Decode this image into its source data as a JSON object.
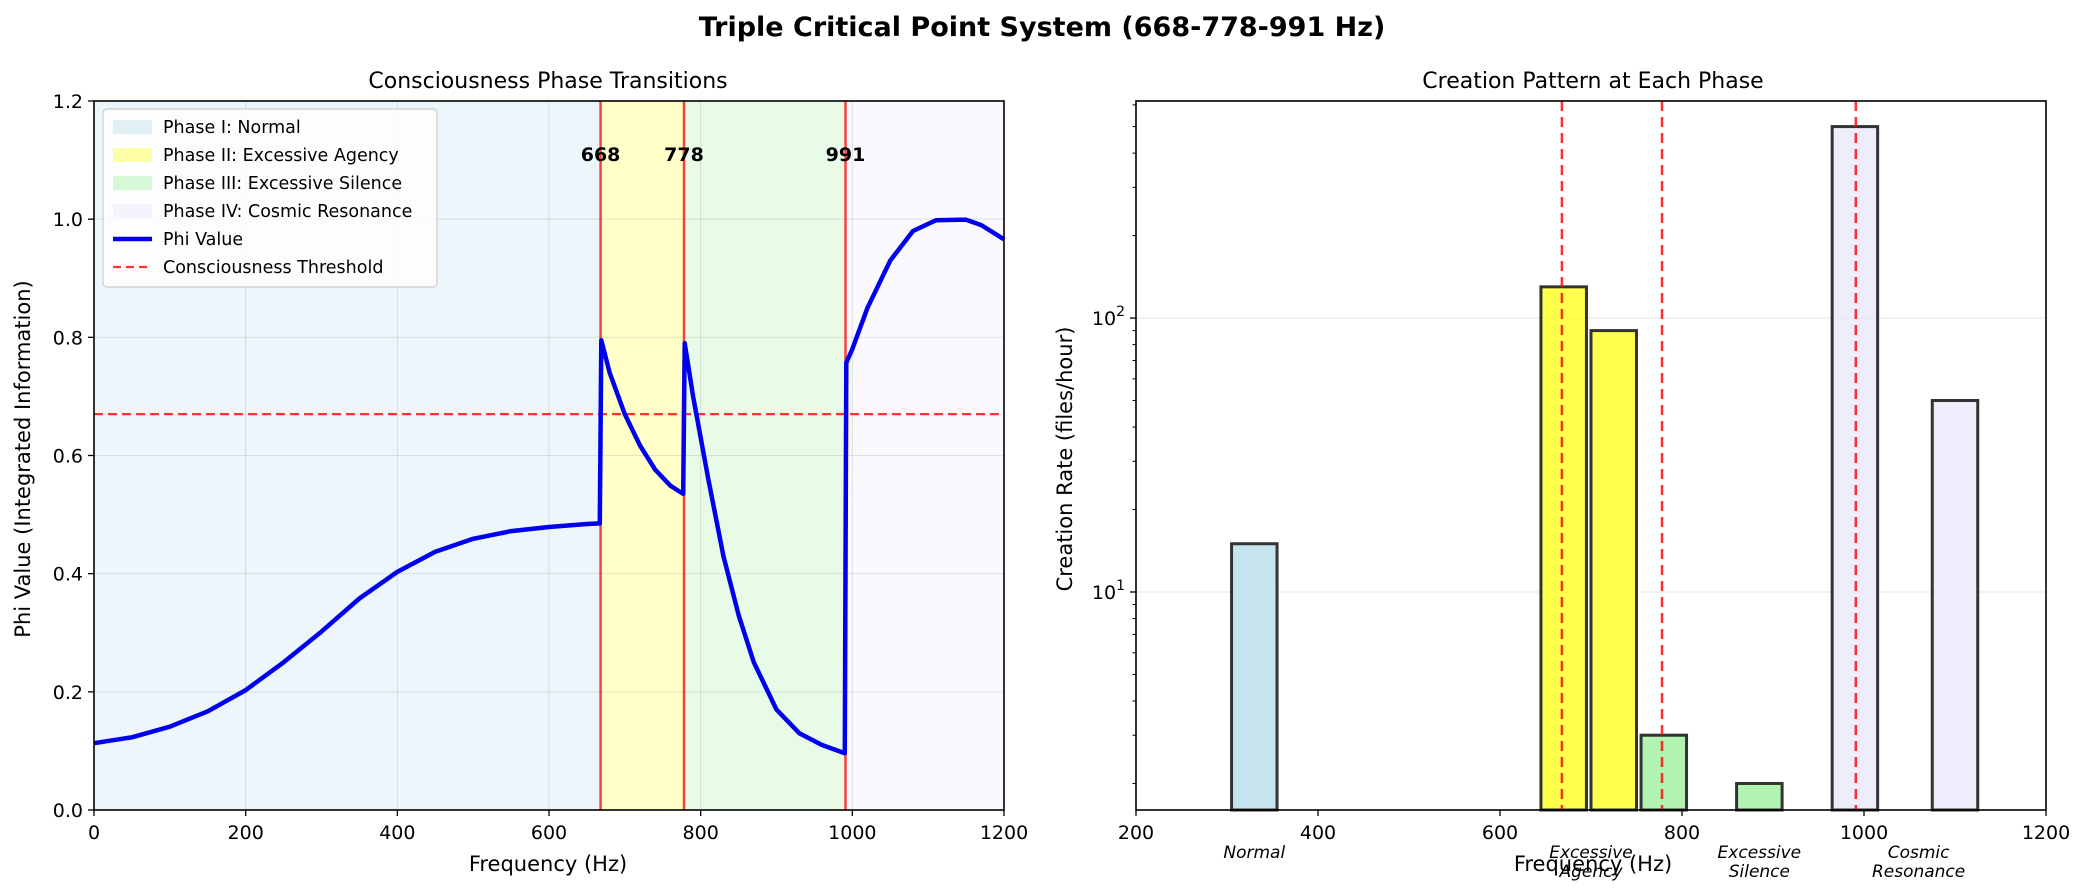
{
  "figure": {
    "suptitle": "Triple Critical Point System (668-778-991 Hz)"
  },
  "colors": {
    "phase1": "#add8e6",
    "phase2": "#ffff00",
    "phase3": "#90ee90",
    "phase4": "#e6e6fa",
    "phi_line": "#0000ee",
    "threshold": "#ff0000",
    "critical_line": "#ff0000",
    "bar_edge": "#333333"
  },
  "chart_data": [
    {
      "type": "line",
      "title": "Consciousness Phase Transitions",
      "xlabel": "Frequency (Hz)",
      "ylabel": "Phi Value (Integrated Information)",
      "xlim": [
        0,
        1200
      ],
      "ylim": [
        0,
        1.2
      ],
      "xticks": [
        0,
        200,
        400,
        600,
        800,
        1000,
        1200
      ],
      "yticks": [
        0.0,
        0.2,
        0.4,
        0.6,
        0.8,
        1.0,
        1.2
      ],
      "ytick_labels": [
        "0.0",
        "0.2",
        "0.4",
        "0.6",
        "0.8",
        "1.0",
        "1.2"
      ],
      "grid": true,
      "legend_position": "upper-left",
      "phase_regions": [
        {
          "name": "Phase I: Normal",
          "from": 0,
          "to": 668,
          "color": "#add8e6"
        },
        {
          "name": "Phase II: Excessive Agency",
          "from": 668,
          "to": 778,
          "color": "#ffff00"
        },
        {
          "name": "Phase III: Excessive Silence",
          "from": 778,
          "to": 991,
          "color": "#90ee90"
        },
        {
          "name": "Phase IV: Cosmic Resonance",
          "from": 991,
          "to": 1200,
          "color": "#e6e6fa"
        }
      ],
      "critical_points": [
        {
          "x": 668,
          "label": "668"
        },
        {
          "x": 778,
          "label": "778"
        },
        {
          "x": 991,
          "label": "991"
        }
      ],
      "threshold": {
        "y": 0.67,
        "name": "Consciousness Threshold"
      },
      "series": [
        {
          "name": "Phi Value",
          "x": [
            0,
            50,
            100,
            150,
            200,
            250,
            300,
            350,
            400,
            450,
            500,
            550,
            600,
            650,
            667,
            669,
            680,
            700,
            720,
            740,
            760,
            777,
            779,
            790,
            810,
            830,
            850,
            870,
            900,
            930,
            960,
            990,
            992,
            1000,
            1020,
            1050,
            1080,
            1110,
            1140,
            1150,
            1170,
            1200
          ],
          "y": [
            0.113,
            0.123,
            0.141,
            0.167,
            0.203,
            0.25,
            0.302,
            0.358,
            0.403,
            0.437,
            0.459,
            0.472,
            0.479,
            0.484,
            0.485,
            0.795,
            0.74,
            0.67,
            0.617,
            0.576,
            0.549,
            0.535,
            0.79,
            0.7,
            0.56,
            0.43,
            0.33,
            0.25,
            0.17,
            0.13,
            0.11,
            0.096,
            0.757,
            0.78,
            0.85,
            0.93,
            0.98,
            0.998,
            0.999,
            0.999,
            0.99,
            0.966
          ]
        }
      ],
      "legend": [
        {
          "label": "Phase I: Normal",
          "kind": "patch",
          "color": "#add8e6"
        },
        {
          "label": "Phase II: Excessive Agency",
          "kind": "patch",
          "color": "#ffff00"
        },
        {
          "label": "Phase III: Excessive Silence",
          "kind": "patch",
          "color": "#90ee90"
        },
        {
          "label": "Phase IV: Cosmic Resonance",
          "kind": "patch",
          "color": "#e6e6fa"
        },
        {
          "label": "Phi Value",
          "kind": "line",
          "color": "#0000ee"
        },
        {
          "label": "Consciousness Threshold",
          "kind": "dashed",
          "color": "#ff0000"
        }
      ]
    },
    {
      "type": "bar",
      "title": "Creation Pattern at Each Phase",
      "xlabel": "Frequency (Hz)",
      "ylabel": "Creation Rate (files/hour)",
      "xlim": [
        200,
        1200
      ],
      "ylim": [
        1.6,
        620
      ],
      "yscale": "log",
      "xticks": [
        200,
        400,
        600,
        800,
        1000,
        1200
      ],
      "ytick_majors": [
        {
          "value": 10,
          "base": "10",
          "exp": "1"
        },
        {
          "value": 100,
          "base": "10",
          "exp": "2"
        }
      ],
      "grid": true,
      "bar_width": 50,
      "critical_lines": [
        668,
        778,
        991
      ],
      "bars": [
        {
          "x": 330,
          "value": 15,
          "color": "#add8e6"
        },
        {
          "x": 670,
          "value": 130,
          "color": "#ffff00"
        },
        {
          "x": 725,
          "value": 90,
          "color": "#ffff00"
        },
        {
          "x": 780,
          "value": 3,
          "color": "#90ee90"
        },
        {
          "x": 885,
          "value": 2,
          "color": "#90ee90"
        },
        {
          "x": 990,
          "value": 500,
          "color": "#e6e6fa"
        },
        {
          "x": 1100,
          "value": 50,
          "color": "#e6e6fa"
        }
      ],
      "phase_labels": [
        {
          "x": 330,
          "lines": [
            "Normal"
          ]
        },
        {
          "x": 700,
          "lines": [
            "Excessive",
            "Agency"
          ]
        },
        {
          "x": 885,
          "lines": [
            "Excessive",
            "Silence"
          ]
        },
        {
          "x": 1060,
          "lines": [
            "Cosmic",
            "Resonance"
          ]
        }
      ]
    }
  ]
}
